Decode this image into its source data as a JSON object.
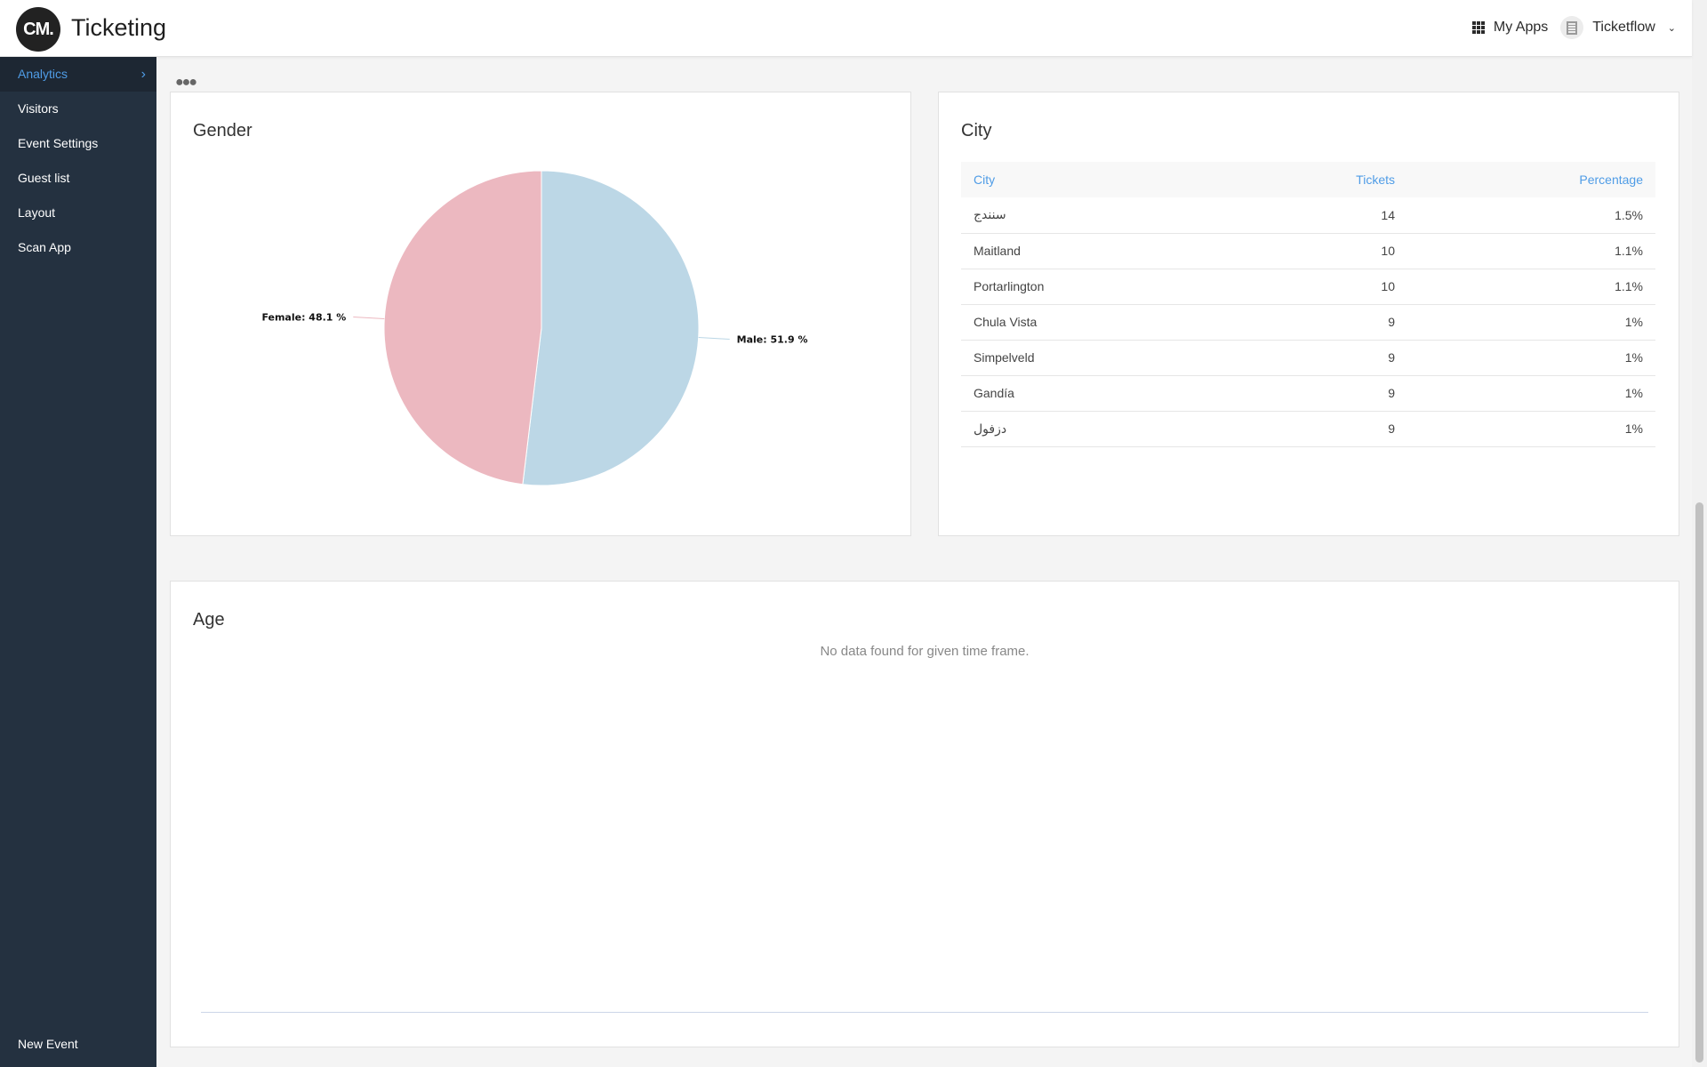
{
  "header": {
    "logo_text": "CM.",
    "title": "Ticketing",
    "my_apps_label": "My Apps",
    "org_name": "Ticketflow"
  },
  "sidebar": {
    "items": [
      {
        "label": "Analytics",
        "active": true
      },
      {
        "label": "Visitors"
      },
      {
        "label": "Event Settings"
      },
      {
        "label": "Guest list"
      },
      {
        "label": "Layout"
      },
      {
        "label": "Scan App"
      }
    ],
    "footer_label": "New Event"
  },
  "gender": {
    "title": "Gender",
    "chart_data": {
      "type": "pie",
      "slices": [
        {
          "label": "Male: 51.9 %",
          "name": "Male",
          "value": 51.9,
          "color": "#bcd7e6"
        },
        {
          "label": "Female: 48.1 %",
          "name": "Female",
          "value": 48.1,
          "color": "#ecb8c0"
        }
      ]
    }
  },
  "city": {
    "title": "City",
    "headers": {
      "city": "City",
      "tickets": "Tickets",
      "percentage": "Percentage"
    },
    "rows": [
      {
        "city": "سنندج",
        "tickets": "14",
        "percentage": "1.5%"
      },
      {
        "city": "Maitland",
        "tickets": "10",
        "percentage": "1.1%"
      },
      {
        "city": "Portarlington",
        "tickets": "10",
        "percentage": "1.1%"
      },
      {
        "city": "Chula Vista",
        "tickets": "9",
        "percentage": "1%"
      },
      {
        "city": "Simpelveld",
        "tickets": "9",
        "percentage": "1%"
      },
      {
        "city": "Gandía",
        "tickets": "9",
        "percentage": "1%"
      },
      {
        "city": "دزفول",
        "tickets": "9",
        "percentage": "1%"
      }
    ]
  },
  "age": {
    "title": "Age",
    "empty_message": "No data found for given time frame."
  },
  "colors": {
    "sidebar_bg": "#243140",
    "accent": "#4f9ce6"
  }
}
